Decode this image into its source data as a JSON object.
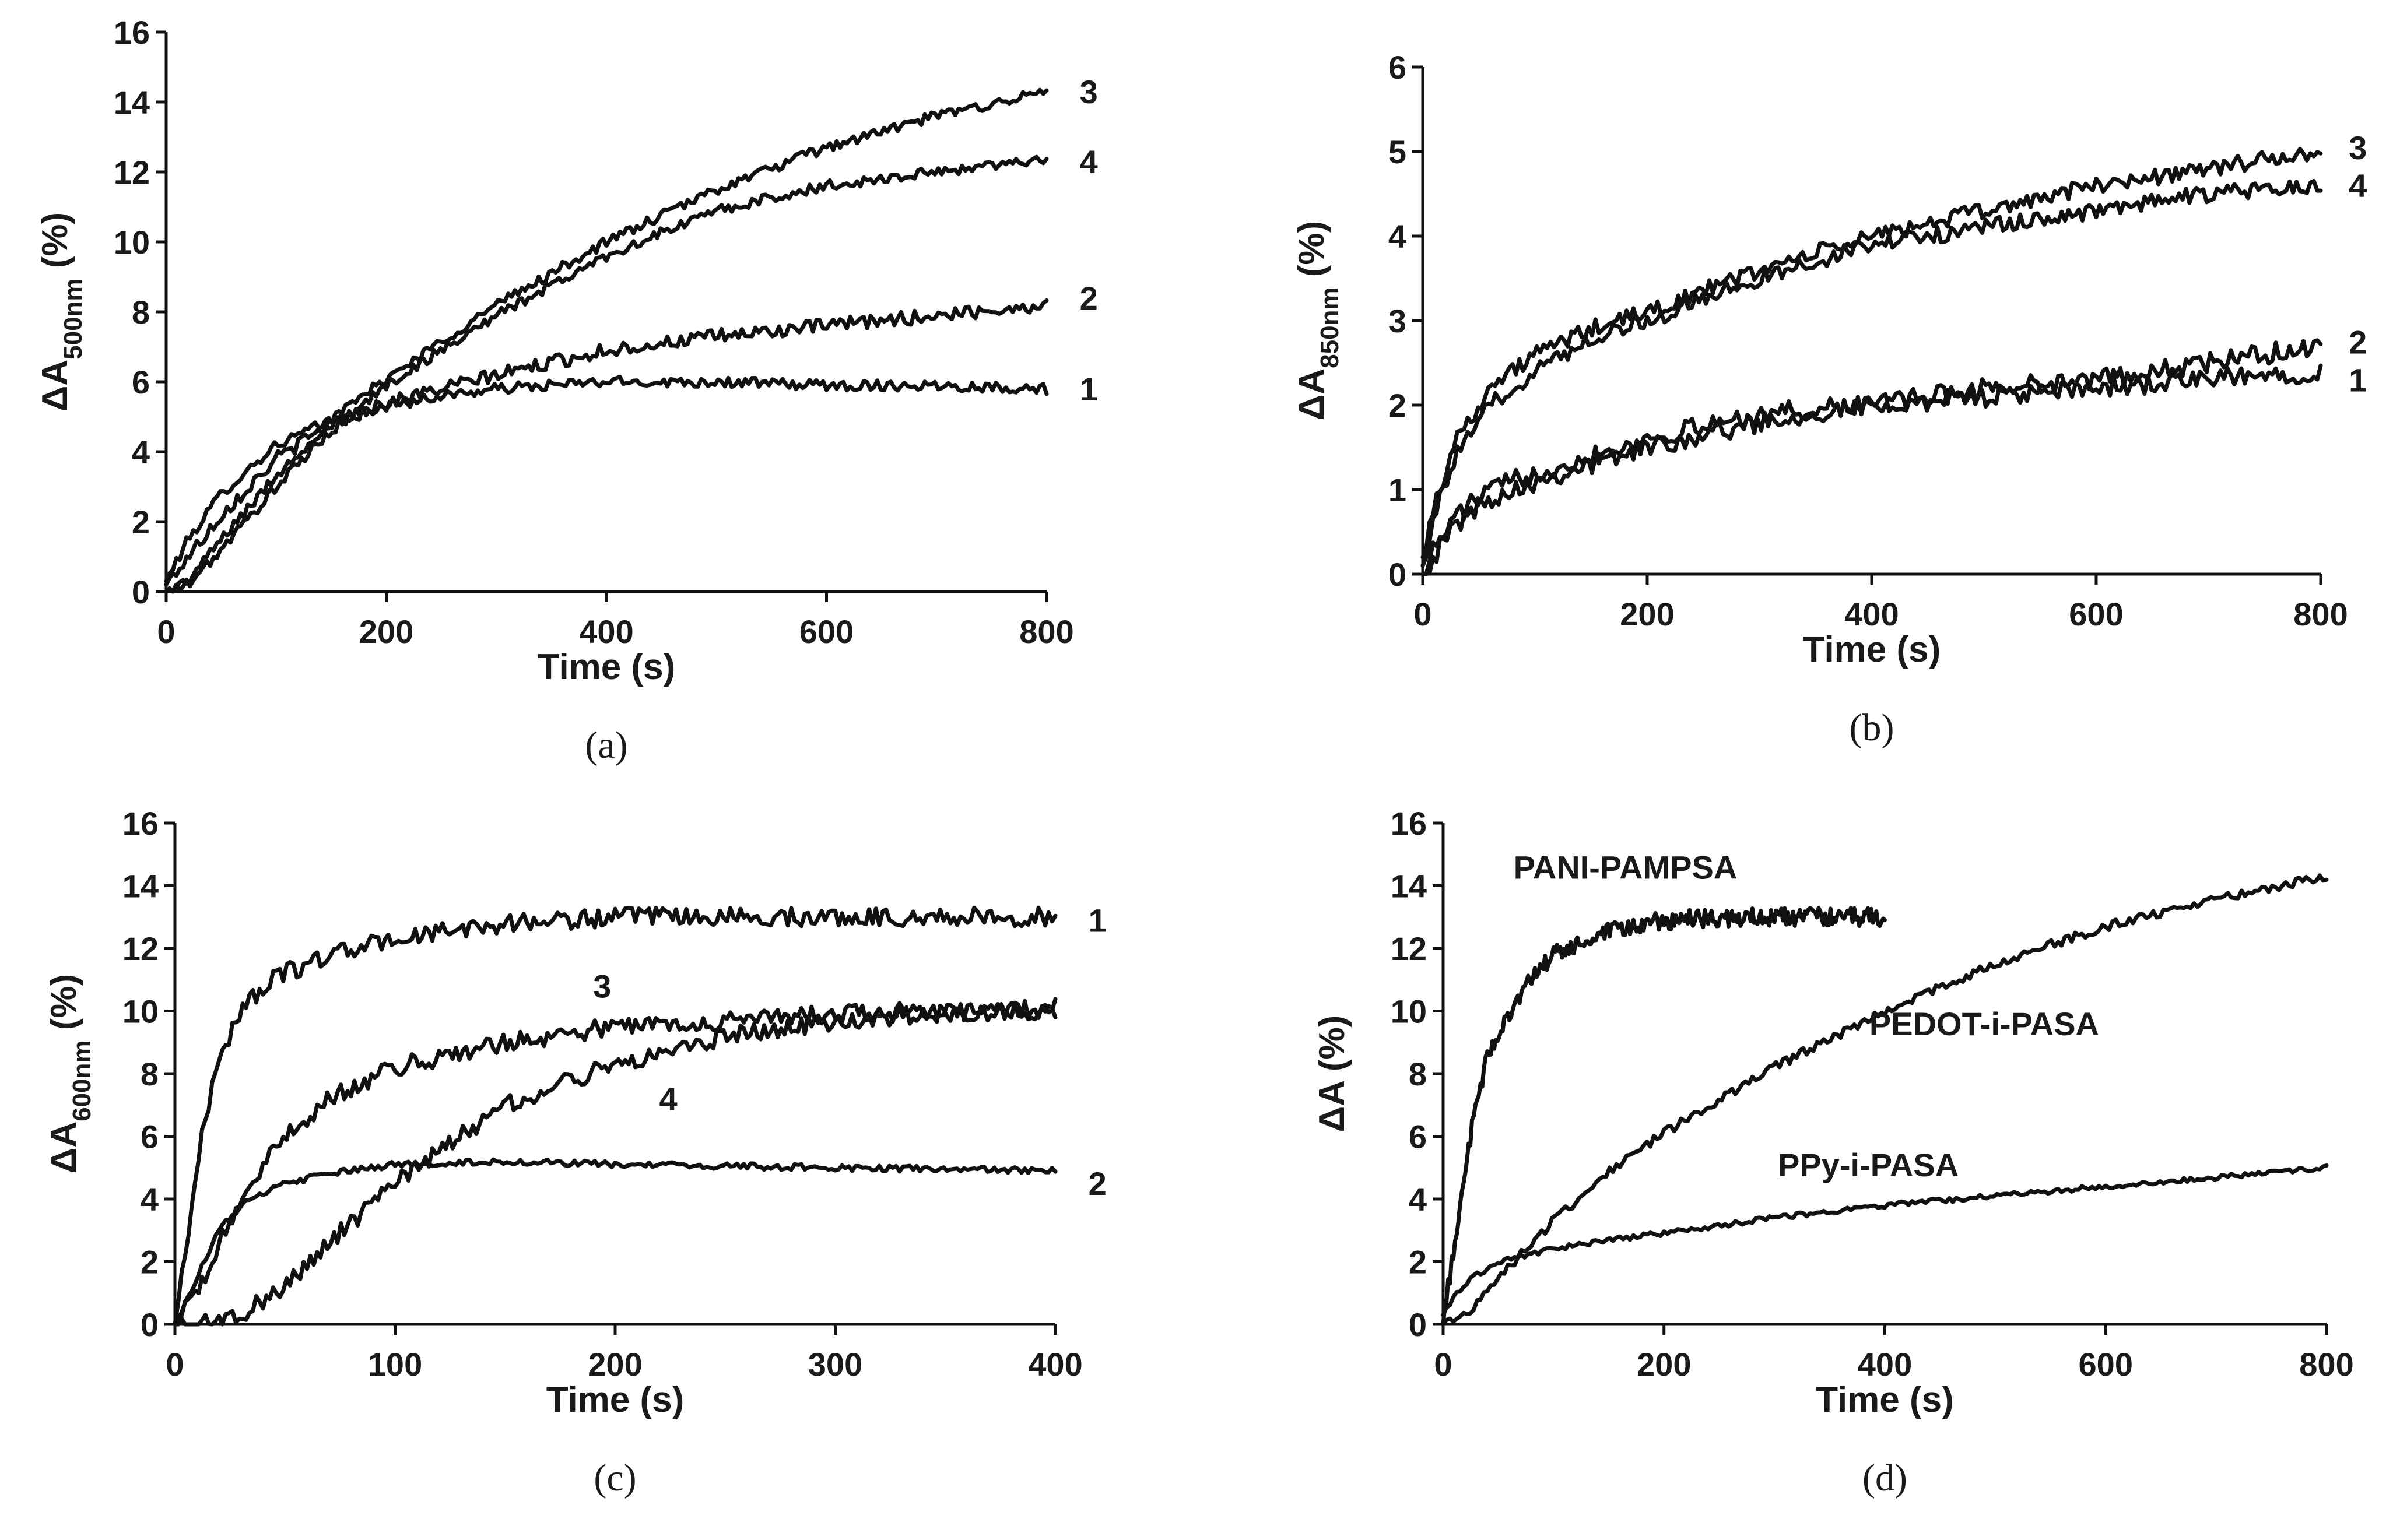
{
  "colors": {
    "line": "#111111",
    "text": "#1a1a1a",
    "background": "#ffffff"
  },
  "chart_data": [
    {
      "id": "a",
      "type": "line",
      "sublabel": "(a)",
      "xlabel": "Time (s)",
      "ylabel_main": "ΔA",
      "ylabel_sub": "500nm",
      "ylabel_suffix": " (%)",
      "xlim": [
        0,
        800
      ],
      "ylim": [
        0,
        16
      ],
      "xticks": [
        0,
        200,
        400,
        600,
        800
      ],
      "yticks": [
        0,
        2,
        4,
        6,
        8,
        10,
        12,
        14,
        16
      ],
      "series": [
        {
          "name": "1",
          "x": [
            0,
            20,
            50,
            100,
            150,
            200,
            250,
            300,
            400,
            500,
            600,
            700,
            800
          ],
          "y": [
            0.3,
            1.5,
            2.8,
            4.2,
            4.9,
            5.3,
            5.6,
            5.8,
            6.0,
            6.0,
            5.9,
            5.9,
            5.8
          ],
          "noise": 0.15
        },
        {
          "name": "2",
          "x": [
            0,
            20,
            50,
            100,
            150,
            200,
            250,
            300,
            400,
            500,
            600,
            700,
            800
          ],
          "y": [
            0.2,
            1.0,
            2.2,
            3.8,
            4.8,
            5.4,
            5.8,
            6.2,
            6.9,
            7.3,
            7.6,
            7.9,
            8.2
          ],
          "noise": 0.2
        },
        {
          "name": "3",
          "x": [
            0,
            20,
            50,
            100,
            150,
            200,
            300,
            400,
            500,
            600,
            700,
            800
          ],
          "y": [
            0.0,
            0.3,
            1.5,
            3.3,
            4.9,
            6.1,
            8.2,
            10.0,
            11.5,
            12.7,
            13.6,
            14.3
          ],
          "noise": 0.15
        },
        {
          "name": "4",
          "x": [
            0,
            20,
            50,
            100,
            150,
            200,
            300,
            400,
            500,
            600,
            700,
            800
          ],
          "y": [
            0.0,
            0.2,
            1.2,
            3.0,
            4.6,
            5.9,
            7.9,
            9.6,
            10.9,
            11.6,
            12.0,
            12.4
          ],
          "noise": 0.15
        }
      ],
      "annotations": [
        {
          "text": "3",
          "x": 830,
          "y": 14.3
        },
        {
          "text": "4",
          "x": 830,
          "y": 12.3
        },
        {
          "text": "2",
          "x": 830,
          "y": 8.4
        },
        {
          "text": "1",
          "x": 830,
          "y": 5.8
        }
      ]
    },
    {
      "id": "b",
      "type": "line",
      "sublabel": "(b)",
      "xlabel": "Time (s)",
      "ylabel_main": "ΔA",
      "ylabel_sub": "850nm",
      "ylabel_suffix": " (%)",
      "xlim": [
        0,
        800
      ],
      "ylim": [
        0,
        6
      ],
      "xticks": [
        0,
        200,
        400,
        600,
        800
      ],
      "yticks": [
        0,
        1,
        2,
        3,
        4,
        5,
        6
      ],
      "series": [
        {
          "name": "1",
          "x": [
            0,
            10,
            30,
            60,
            100,
            150,
            200,
            300,
            400,
            500,
            600,
            700,
            800
          ],
          "y": [
            0.0,
            0.2,
            0.6,
            0.9,
            1.1,
            1.3,
            1.5,
            1.8,
            2.0,
            2.1,
            2.2,
            2.3,
            2.4
          ],
          "noise": 0.12
        },
        {
          "name": "2",
          "x": [
            0,
            10,
            30,
            60,
            100,
            150,
            200,
            300,
            400,
            500,
            600,
            700,
            800
          ],
          "y": [
            0.0,
            0.3,
            0.7,
            1.0,
            1.2,
            1.4,
            1.6,
            1.9,
            2.0,
            2.2,
            2.3,
            2.5,
            2.7
          ],
          "noise": 0.12
        },
        {
          "name": "3",
          "x": [
            0,
            10,
            30,
            60,
            100,
            150,
            200,
            300,
            400,
            500,
            600,
            700,
            800
          ],
          "y": [
            0.2,
            0.8,
            1.6,
            2.2,
            2.6,
            2.9,
            3.1,
            3.6,
            4.0,
            4.3,
            4.6,
            4.8,
            5.0
          ],
          "noise": 0.1
        },
        {
          "name": "4",
          "x": [
            0,
            10,
            30,
            60,
            100,
            150,
            200,
            300,
            400,
            500,
            600,
            700,
            800
          ],
          "y": [
            0.1,
            0.7,
            1.4,
            2.0,
            2.4,
            2.8,
            3.0,
            3.5,
            3.9,
            4.1,
            4.3,
            4.5,
            4.6
          ],
          "noise": 0.1
        }
      ],
      "annotations": [
        {
          "text": "3",
          "x": 825,
          "y": 5.05
        },
        {
          "text": "4",
          "x": 825,
          "y": 4.6
        },
        {
          "text": "2",
          "x": 825,
          "y": 2.75
        },
        {
          "text": "1",
          "x": 825,
          "y": 2.3
        }
      ]
    },
    {
      "id": "c",
      "type": "line",
      "sublabel": "(c)",
      "xlabel": "Time (s)",
      "ylabel_main": "ΔA",
      "ylabel_sub": "600nm",
      "ylabel_suffix": " (%)",
      "xlim": [
        0,
        400
      ],
      "ylim": [
        0,
        16
      ],
      "xticks": [
        0,
        100,
        200,
        300,
        400
      ],
      "yticks": [
        0,
        2,
        4,
        6,
        8,
        10,
        12,
        14,
        16
      ],
      "series": [
        {
          "name": "1",
          "x": [
            0,
            5,
            10,
            15,
            20,
            30,
            40,
            50,
            70,
            100,
            150,
            200,
            300,
            400
          ],
          "y": [
            0.0,
            2.5,
            5.0,
            7.0,
            8.5,
            10.0,
            10.8,
            11.2,
            11.8,
            12.3,
            12.8,
            13.0,
            13.0,
            13.0
          ],
          "noise": 0.3
        },
        {
          "name": "2",
          "x": [
            0,
            10,
            20,
            30,
            50,
            70,
            100,
            150,
            200,
            300,
            400
          ],
          "y": [
            0.0,
            1.5,
            3.0,
            3.8,
            4.5,
            4.8,
            5.1,
            5.2,
            5.1,
            5.0,
            4.9
          ],
          "noise": 0.1
        },
        {
          "name": "3",
          "x": [
            0,
            10,
            20,
            30,
            50,
            70,
            100,
            150,
            200,
            250,
            300,
            350,
            400
          ],
          "y": [
            0.0,
            1.0,
            2.5,
            4.0,
            6.0,
            7.2,
            8.2,
            9.0,
            9.5,
            9.7,
            9.9,
            10.0,
            10.0
          ],
          "noise": 0.3
        },
        {
          "name": "4",
          "x": [
            0,
            10,
            20,
            30,
            50,
            70,
            100,
            150,
            200,
            250,
            300,
            350,
            400
          ],
          "y": [
            0.0,
            0.0,
            0.1,
            0.3,
            1.2,
            2.6,
            4.5,
            7.0,
            8.3,
            9.2,
            9.7,
            9.9,
            10.1
          ],
          "noise": 0.3
        }
      ],
      "annotations": [
        {
          "text": "1",
          "x": 415,
          "y": 12.9
        },
        {
          "text": "3",
          "x": 190,
          "y": 10.8
        },
        {
          "text": "4",
          "x": 220,
          "y": 7.2
        },
        {
          "text": "2",
          "x": 415,
          "y": 4.5
        }
      ]
    },
    {
      "id": "d",
      "type": "line",
      "sublabel": "(d)",
      "xlabel": "Time (s)",
      "ylabel_main": "ΔA",
      "ylabel_sub": "",
      "ylabel_suffix": " (%)",
      "xlim": [
        0,
        800
      ],
      "ylim": [
        0,
        16
      ],
      "xticks": [
        0,
        200,
        400,
        600,
        800
      ],
      "yticks": [
        0,
        2,
        4,
        6,
        8,
        10,
        12,
        14,
        16
      ],
      "series": [
        {
          "name": "PANI-PAMPSA",
          "x": [
            0,
            10,
            20,
            30,
            40,
            60,
            80,
            100,
            150,
            200,
            300,
            400
          ],
          "y": [
            0.0,
            2.5,
            5.0,
            7.0,
            8.5,
            10.0,
            11.0,
            11.8,
            12.5,
            12.9,
            13.0,
            13.0
          ],
          "noise": 0.3
        },
        {
          "name": "PEDOT-i-PASA",
          "x": [
            0,
            20,
            50,
            100,
            150,
            200,
            300,
            400,
            500,
            600,
            700,
            800
          ],
          "y": [
            0.0,
            0.3,
            1.5,
            3.3,
            4.9,
            6.1,
            8.2,
            10.0,
            11.5,
            12.7,
            13.6,
            14.3
          ],
          "noise": 0.15
        },
        {
          "name": "PPy-i-PASA",
          "x": [
            0,
            10,
            30,
            60,
            100,
            150,
            200,
            300,
            400,
            500,
            600,
            700,
            800
          ],
          "y": [
            0.3,
            0.9,
            1.6,
            2.1,
            2.4,
            2.7,
            2.9,
            3.4,
            3.8,
            4.1,
            4.4,
            4.7,
            5.0
          ],
          "noise": 0.08
        }
      ],
      "annotations": [
        {
          "text": "PANI-PAMPSA",
          "x": 165,
          "y": 14.6
        },
        {
          "text": "PEDOT-i-PASA",
          "x": 490,
          "y": 9.6
        },
        {
          "text": "PPy-i-PASA",
          "x": 385,
          "y": 5.1
        }
      ]
    }
  ]
}
